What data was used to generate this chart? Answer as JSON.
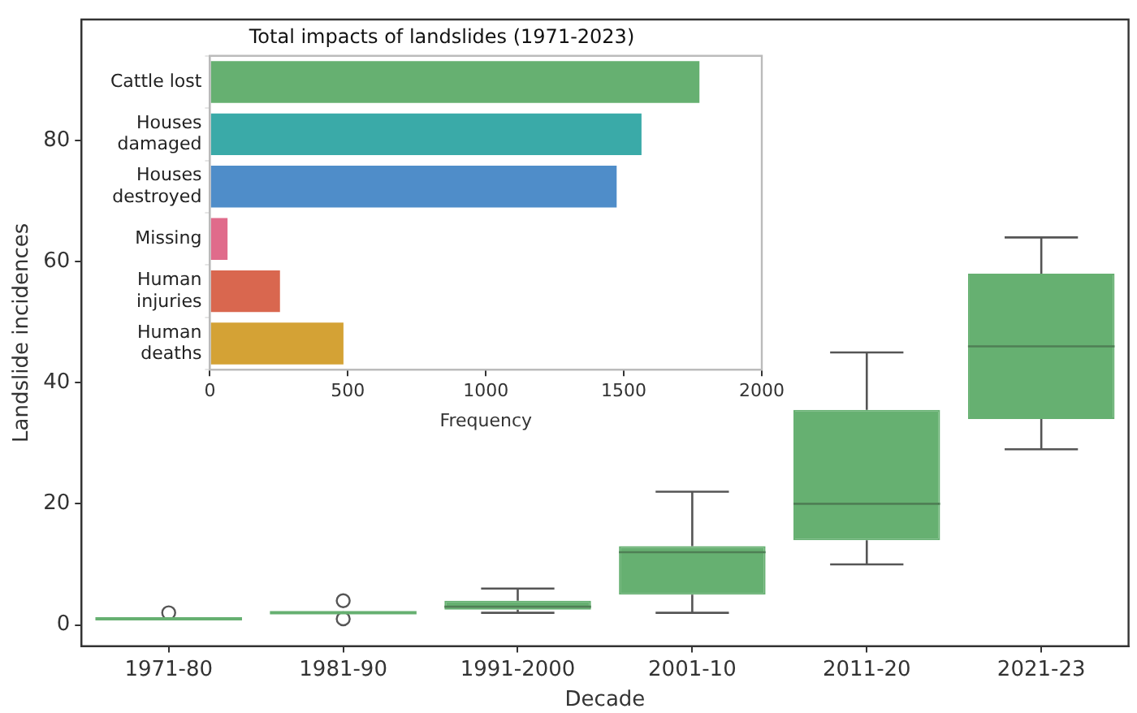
{
  "chart_data": [
    {
      "type": "box",
      "xlabel": "Decade",
      "ylabel": "Landslide incidences",
      "categories": [
        "1971-80",
        "1981-90",
        "1991-2000",
        "2001-10",
        "2011-20",
        "2021-23"
      ],
      "color": "#66b071",
      "boxes": [
        {
          "low": 1,
          "q1": 1,
          "median": 1,
          "q3": 1,
          "high": 1,
          "outliers": [
            2
          ]
        },
        {
          "low": 2,
          "q1": 2,
          "median": 2,
          "q3": 2,
          "high": 2,
          "outliers": [
            4,
            1
          ]
        },
        {
          "low": 2,
          "q1": 2.5,
          "median": 3,
          "q3": 4,
          "high": 6
        },
        {
          "low": 2,
          "q1": 5,
          "median": 12,
          "q3": 13,
          "high": 22
        },
        {
          "low": 10,
          "q1": 14,
          "median": 20,
          "q3": 35.5,
          "high": 45
        },
        {
          "low": 29,
          "q1": 34,
          "median": 46,
          "q3": 58,
          "high": 64
        }
      ],
      "ylim": [
        -3.5,
        100
      ],
      "yticks": [
        0,
        20,
        40,
        60,
        80
      ],
      "grid": false,
      "legend": false
    },
    {
      "type": "bar",
      "orientation": "horizontal",
      "title": "Total impacts of landslides (1971-2023)",
      "xlabel": "Frequency",
      "categories": [
        "Cattle lost",
        "Houses\ndamaged",
        "Houses\ndestroyed",
        "Missing",
        "Human\ninjuries",
        "Human\ndeaths"
      ],
      "values": [
        1780,
        1570,
        1480,
        70,
        260,
        490
      ],
      "colors": [
        "#66b071",
        "#3aaaa8",
        "#4f8dc9",
        "#e06b8b",
        "#d9674f",
        "#d4a235"
      ],
      "xlim": [
        0,
        2000
      ],
      "xticks": [
        0,
        500,
        1000,
        1500,
        2000
      ],
      "grid": false,
      "legend": false
    }
  ]
}
